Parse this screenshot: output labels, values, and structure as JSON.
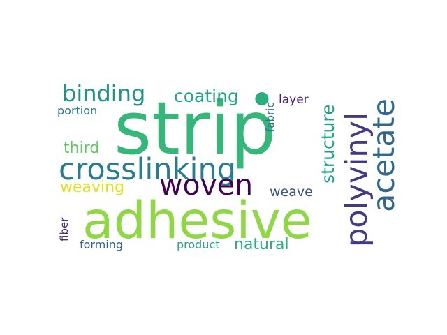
{
  "word_cloud": {
    "words": [
      {
        "text": "strip",
        "color": "#35b779"
      },
      {
        "text": "adhesive",
        "color": "#8fd744"
      },
      {
        "text": "crosslinking",
        "color": "#287c8e"
      },
      {
        "text": "woven",
        "color": "#440154"
      },
      {
        "text": "polyvinyl",
        "color": "#443a83"
      },
      {
        "text": "acetate",
        "color": "#31688e"
      },
      {
        "text": "binding",
        "color": "#21918c"
      },
      {
        "text": "coating",
        "color": "#20a486"
      },
      {
        "text": "structure",
        "color": "#1fa187"
      },
      {
        "text": "third",
        "color": "#5ec962"
      },
      {
        "text": "weaving",
        "color": "#dde318"
      },
      {
        "text": "weave",
        "color": "#3b528b"
      },
      {
        "text": "natural",
        "color": "#2db27d"
      },
      {
        "text": "layer",
        "color": "#481f70"
      },
      {
        "text": "fabric",
        "color": "#2c728e"
      },
      {
        "text": "portion",
        "color": "#2a788e"
      },
      {
        "text": "fiber",
        "color": "#472d7b"
      },
      {
        "text": "forming",
        "color": "#33638d"
      },
      {
        "text": "product",
        "color": "#22a884"
      },
      {
        "text": "dot",
        "color": "#29af7f"
      }
    ]
  }
}
